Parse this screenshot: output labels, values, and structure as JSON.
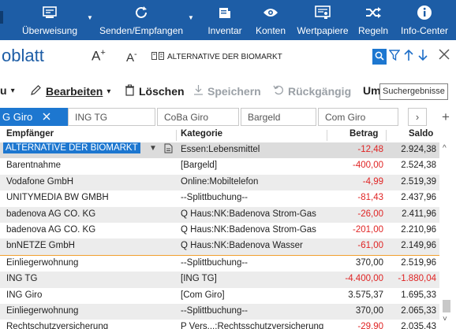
{
  "ribbon": {
    "items": [
      {
        "label": "Überweisung",
        "icon": "transfer-form-icon",
        "has_menu": true
      },
      {
        "label": "Senden/Empfangen",
        "icon": "sync-icon",
        "has_menu": true
      },
      {
        "label": "Inventar",
        "icon": "inventory-icon",
        "has_menu": false
      },
      {
        "label": "Konten",
        "icon": "eye-icon",
        "has_menu": false
      },
      {
        "label": "Wertpapiere",
        "icon": "securities-icon",
        "has_menu": false
      },
      {
        "label": "Regeln",
        "icon": "shuffle-icon",
        "has_menu": false
      },
      {
        "label": "Info-Center",
        "icon": "info-icon",
        "has_menu": false
      }
    ],
    "background": "#1d5da6"
  },
  "header": {
    "title": "oblatt",
    "font_increase": "A",
    "font_increase_sup": "+",
    "font_decrease": "A",
    "font_decrease_sup": "-",
    "search_value": "ALTERNATIVE DER BIOMARKT"
  },
  "toolbar": {
    "menu_partial": "u",
    "edit": "Bearbeiten",
    "delete": "Löschen",
    "save": "Speichern",
    "undo": "Rückgängig",
    "more_partial": "Um",
    "tooltip": "Suchergebnisse"
  },
  "tabs": [
    {
      "label": "G Giro",
      "active": true
    },
    {
      "label": "ING TG",
      "active": false
    },
    {
      "label": "CoBa Giro",
      "active": false
    },
    {
      "label": "Bargeld",
      "active": false
    },
    {
      "label": "Com Giro",
      "active": false
    }
  ],
  "table": {
    "columns": {
      "payee": "Empfänger",
      "category": "Kategorie",
      "amount": "Betrag",
      "balance": "Saldo"
    },
    "rows": [
      {
        "payee": "ALTERNATIVE DER BIOMARKT",
        "category": "Essen:Lebensmittel",
        "amount": "-12,48",
        "balance": "2.924,38",
        "neg_amount": true,
        "neg_balance": false,
        "shade": "selected"
      },
      {
        "payee": "Barentnahme",
        "category": "[Bargeld]",
        "amount": "-400,00",
        "balance": "2.524,38",
        "neg_amount": true,
        "neg_balance": false,
        "shade": "none"
      },
      {
        "payee": "Vodafone GmbH",
        "category": "Online:Mobiltelefon",
        "amount": "-4,99",
        "balance": "2.519,39",
        "neg_amount": true,
        "neg_balance": false,
        "shade": "gray"
      },
      {
        "payee": "UNITYMEDIA BW GMBH",
        "category": "--Splittbuchung--",
        "amount": "-81,43",
        "balance": "2.437,96",
        "neg_amount": true,
        "neg_balance": false,
        "shade": "none"
      },
      {
        "payee": "badenova AG CO. KG",
        "category": "Q Haus:NK:Badenova Strom-Gas",
        "amount": "-26,00",
        "balance": "2.411,96",
        "neg_amount": true,
        "neg_balance": false,
        "shade": "gray"
      },
      {
        "payee": "badenova AG CO. KG",
        "category": "Q Haus:NK:Badenova Strom-Gas",
        "amount": "-201,00",
        "balance": "2.210,96",
        "neg_amount": true,
        "neg_balance": false,
        "shade": "none"
      },
      {
        "payee": "bnNETZE GmbH",
        "category": "Q Haus:NK:Badenova Wasser",
        "amount": "-61,00",
        "balance": "2.149,96",
        "neg_amount": true,
        "neg_balance": false,
        "shade": "gray"
      },
      {
        "payee": "Einliegerwohnung",
        "category": "--Splittbuchung--",
        "amount": "370,00",
        "balance": "2.519,96",
        "neg_amount": false,
        "neg_balance": false,
        "shade": "none"
      },
      {
        "payee": "ING TG",
        "category": "[ING TG]",
        "amount": "-4.400,00",
        "balance": "-1.880,04",
        "neg_amount": true,
        "neg_balance": true,
        "shade": "gray"
      },
      {
        "payee": "ING Giro",
        "category": "[Com Giro]",
        "amount": "3.575,37",
        "balance": "1.695,33",
        "neg_amount": false,
        "neg_balance": false,
        "shade": "none"
      },
      {
        "payee": "Einliegerwohnung",
        "category": "--Splittbuchung--",
        "amount": "370,00",
        "balance": "2.065,33",
        "neg_amount": false,
        "neg_balance": false,
        "shade": "gray"
      },
      {
        "payee": "Rechtschutzversicherung",
        "category": "P Vers...:Rechtsschutzversicherung",
        "amount": "-29,90",
        "balance": "2.035,43",
        "neg_amount": true,
        "neg_balance": false,
        "shade": "none"
      }
    ]
  },
  "colors": {
    "accent": "#1d77d0",
    "negative": "#e02424",
    "future_divider": "#f0a030"
  }
}
